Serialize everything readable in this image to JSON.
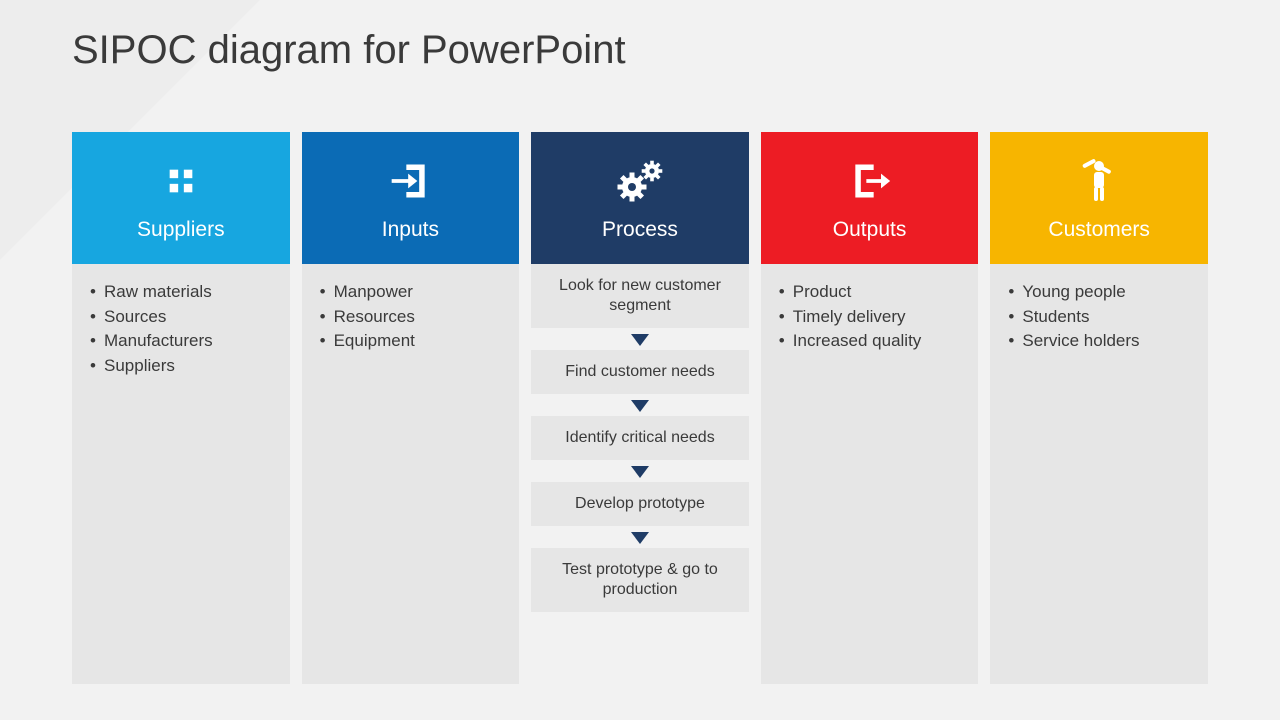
{
  "title": "SIPOC diagram for PowerPoint",
  "background_color": "#f2f2f2",
  "corner_color": "#ededed",
  "body_bg": "#e6e6e6",
  "text_color": "#3a3a3a",
  "arrow_color": "#1f3c66",
  "title_fontsize": 40,
  "header_label_fontsize": 21,
  "list_fontsize": 17,
  "step_fontsize": 16,
  "columns": [
    {
      "key": "suppliers",
      "label": "Suppliers",
      "header_color": "#17a6e0",
      "icon": "grid",
      "type": "list",
      "items": [
        "Raw materials",
        "Sources",
        "Manufacturers",
        "Suppliers"
      ]
    },
    {
      "key": "inputs",
      "label": "Inputs",
      "header_color": "#0b6bb5",
      "icon": "login",
      "type": "list",
      "items": [
        "Manpower",
        "Resources",
        "Equipment"
      ]
    },
    {
      "key": "process",
      "label": "Process",
      "header_color": "#1f3c66",
      "icon": "gears",
      "type": "steps",
      "steps": [
        "Look for new customer segment",
        "Find customer needs",
        "Identify critical needs",
        "Develop prototype",
        "Test prototype & go to production"
      ]
    },
    {
      "key": "outputs",
      "label": "Outputs",
      "header_color": "#ed1c24",
      "icon": "logout",
      "type": "list",
      "items": [
        "Product",
        "Timely delivery",
        "Increased quality"
      ]
    },
    {
      "key": "customers",
      "label": "Customers",
      "header_color": "#f7b500",
      "icon": "person",
      "type": "list",
      "items": [
        "Young people",
        "Students",
        "Service holders"
      ]
    }
  ]
}
